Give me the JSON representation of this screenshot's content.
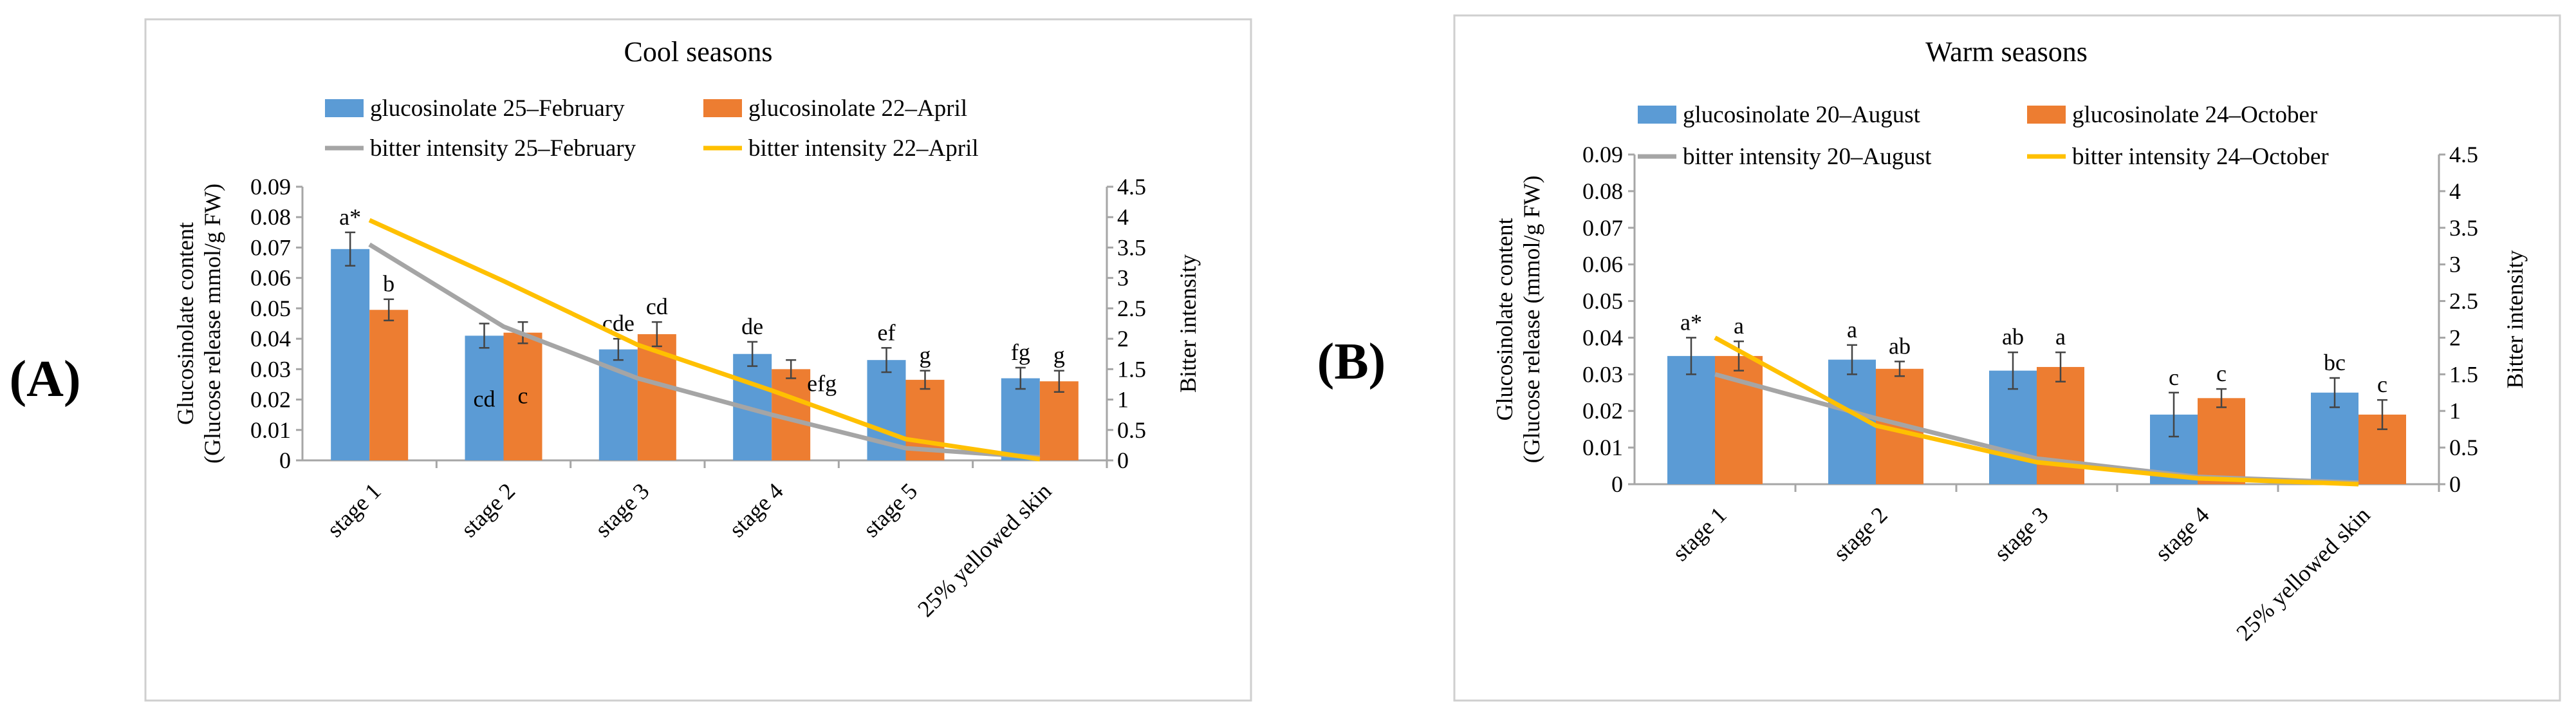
{
  "figure": {
    "labels": [
      "(A)",
      "(B)"
    ]
  },
  "chart_data": [
    {
      "panel": "(A)",
      "type": "bar",
      "title": "Cool seasons",
      "ylabel": "Glucosinolate content\n(Glucose release mmol/g FW)",
      "y2label": "Bitter intensity",
      "ylim": [
        0,
        0.09
      ],
      "y2lim": [
        0,
        4.5
      ],
      "yticks": [
        "0",
        "0.01",
        "0.02",
        "0.03",
        "0.04",
        "0.05",
        "0.06",
        "0.07",
        "0.08",
        "0.09"
      ],
      "y2ticks": [
        "0",
        "0.5",
        "1",
        "1.5",
        "2",
        "2.5",
        "3",
        "3.5",
        "4",
        "4.5"
      ],
      "categories": [
        "stage 1",
        "stage 2",
        "stage 3",
        "stage 4",
        "stage 5",
        "25% yellowed skin"
      ],
      "series": [
        {
          "name": "glucosinolate  25–February",
          "kind": "bar",
          "color": "#5b9bd5",
          "values": [
            0.0695,
            0.041,
            0.0365,
            0.035,
            0.033,
            0.027
          ],
          "errors": [
            0.0055,
            0.004,
            0.0035,
            0.004,
            0.004,
            0.0035
          ],
          "letters": [
            "a*",
            "cd",
            "cde",
            "de",
            "ef",
            "fg"
          ],
          "letter_pos": [
            "above",
            "inside",
            "above",
            "above",
            "above",
            "above"
          ]
        },
        {
          "name": "glucosinolate  22–April",
          "kind": "bar",
          "color": "#ed7d31",
          "values": [
            0.0495,
            0.042,
            0.0415,
            0.03,
            0.0265,
            0.026
          ],
          "errors": [
            0.0035,
            0.0035,
            0.004,
            0.003,
            0.003,
            0.0035
          ],
          "letters": [
            "b",
            "c",
            "cd",
            "efg",
            "g",
            "g"
          ],
          "letter_pos": [
            "above",
            "inside",
            "above",
            "right",
            "above",
            "above"
          ]
        },
        {
          "name": "bitter intensity 25–February",
          "kind": "line",
          "axis": "y2",
          "color": "#a5a5a5",
          "values": [
            3.55,
            2.2,
            1.35,
            0.75,
            0.2,
            0.05
          ]
        },
        {
          "name": "bitter intensity 22–April",
          "kind": "line",
          "axis": "y2",
          "color": "#ffc000",
          "values": [
            3.95,
            2.95,
            1.9,
            1.15,
            0.35,
            0.02
          ]
        }
      ],
      "legend": "top"
    },
    {
      "panel": "(B)",
      "type": "bar",
      "title": "Warm seasons",
      "ylabel": "Glucosinolate content\n(Glucose release (mmol/g FW)",
      "y2label": "Bitter intensity",
      "ylim": [
        0,
        0.09
      ],
      "y2lim": [
        0,
        4.5
      ],
      "yticks": [
        "0",
        "0.01",
        "0.02",
        "0.03",
        "0.04",
        "0.05",
        "0.06",
        "0.07",
        "0.08",
        "0.09"
      ],
      "y2ticks": [
        "0",
        "0.5",
        "1",
        "1.5",
        "2",
        "2.5",
        "3",
        "3.5",
        "4",
        "4.5"
      ],
      "categories": [
        "stage 1",
        "stage 2",
        "stage 3",
        "stage 4",
        "25% yellowed skin"
      ],
      "series": [
        {
          "name": "glucosinolate  20–August",
          "kind": "bar",
          "color": "#5b9bd5",
          "values": [
            0.035,
            0.034,
            0.031,
            0.019,
            0.025
          ],
          "errors": [
            0.005,
            0.004,
            0.005,
            0.006,
            0.004
          ],
          "letters": [
            "a*",
            "a",
            "ab",
            "c",
            "bc"
          ],
          "letter_pos": [
            "above",
            "above",
            "above",
            "above",
            "above"
          ]
        },
        {
          "name": "glucosinolate  24–October",
          "kind": "bar",
          "color": "#ed7d31",
          "values": [
            0.035,
            0.0315,
            0.032,
            0.0235,
            0.019
          ],
          "errors": [
            0.004,
            0.002,
            0.004,
            0.0025,
            0.004
          ],
          "letters": [
            "a",
            "ab",
            "a",
            "c",
            "c"
          ],
          "letter_pos": [
            "above",
            "above",
            "above",
            "above",
            "above"
          ]
        },
        {
          "name": "bitter intensity 20–August",
          "kind": "line",
          "axis": "y2",
          "color": "#a5a5a5",
          "values": [
            1.5,
            0.9,
            0.35,
            0.1,
            0.02
          ]
        },
        {
          "name": "bitter intensity 24–October",
          "kind": "line",
          "axis": "y2",
          "color": "#ffc000",
          "values": [
            2.0,
            0.8,
            0.3,
            0.08,
            0.0
          ]
        }
      ],
      "legend": "top"
    }
  ]
}
